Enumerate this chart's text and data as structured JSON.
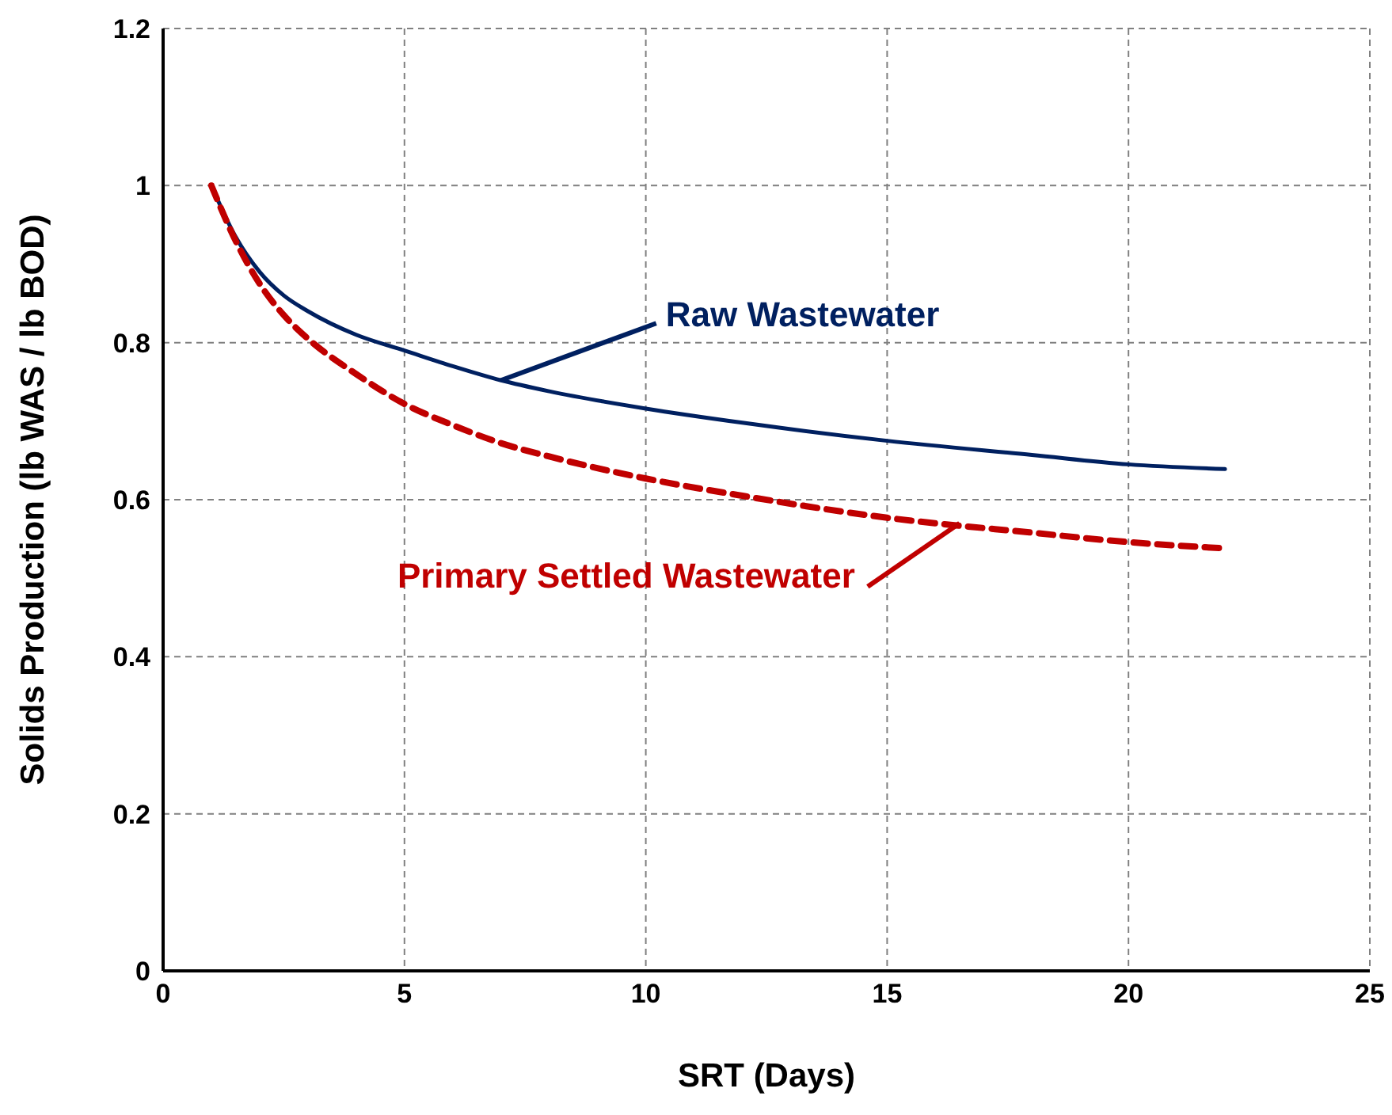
{
  "chart_data": {
    "type": "line",
    "xlabel": "SRT (Days)",
    "ylabel": "Solids Production (lb WAS / lb BOD)",
    "x": [
      1,
      1.5,
      2,
      2.5,
      3,
      4,
      5,
      6,
      7,
      8,
      10,
      12,
      15,
      18,
      20,
      22
    ],
    "series": [
      {
        "color": "#002060",
        "line_style": "solid",
        "values": [
          1.0,
          0.935,
          0.89,
          0.86,
          0.84,
          0.81,
          0.79,
          0.77,
          0.752,
          0.738,
          0.716,
          0.698,
          0.675,
          0.657,
          0.645,
          0.639
        ]
      },
      {
        "color": "#c00000",
        "line_style": "dashed",
        "values": [
          1.0,
          0.93,
          0.875,
          0.835,
          0.805,
          0.76,
          0.722,
          0.695,
          0.672,
          0.655,
          0.627,
          0.605,
          0.577,
          0.558,
          0.546,
          0.538
        ]
      }
    ],
    "annotations": [
      {
        "text": "Raw Wastewater",
        "x": 7,
        "y": 0.752
      },
      {
        "text": "Primary Settled Wastewater",
        "x": 16.5,
        "y": 0.57
      }
    ],
    "xlim": [
      0,
      25
    ],
    "xticks": [
      0,
      5,
      10,
      15,
      20,
      25
    ],
    "ylim": [
      0,
      1.2
    ],
    "yticks": [
      0,
      0.2,
      0.4,
      0.6,
      0.8,
      1,
      1.2
    ],
    "grid": true,
    "marker": "none",
    "legend": false
  }
}
